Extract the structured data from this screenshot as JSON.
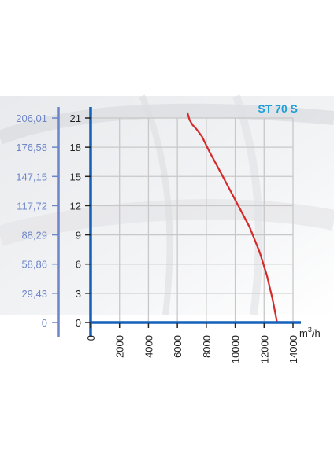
{
  "chart_data": {
    "type": "line",
    "title": "ST 70 S",
    "xlabel_base": "m",
    "xlabel_sup": "3",
    "xlabel_tail": "/h",
    "x_ticks": [
      "0",
      "2000",
      "4000",
      "6000",
      "8000",
      "10000",
      "12000",
      "14000"
    ],
    "y_ticks": [
      "0",
      "3",
      "6",
      "9",
      "12",
      "15",
      "18",
      "21"
    ],
    "y2_ticks": [
      "0",
      "29,43",
      "58,86",
      "88,29",
      "117,72",
      "147,15",
      "176,58",
      "206,01"
    ],
    "xlim": [
      0,
      14000
    ],
    "ylim": [
      0,
      21
    ],
    "grid": true,
    "series": [
      {
        "color": "#d42a2a",
        "x": [
          6700,
          6850,
          7050,
          7300,
          7700,
          8200,
          9000,
          10000,
          11000,
          11700,
          12200,
          12600,
          12900
        ],
        "y": [
          21.5,
          20.8,
          20.3,
          19.9,
          19.1,
          17.6,
          15.4,
          12.6,
          9.8,
          7.2,
          4.8,
          2.3,
          0
        ]
      }
    ]
  },
  "colors": {
    "axis_primary": "#1560b8",
    "axis_secondary": "#6e86c8",
    "title": "#1e9fd8",
    "grid": "#c8c8c8",
    "curve": "#d42a2a"
  }
}
